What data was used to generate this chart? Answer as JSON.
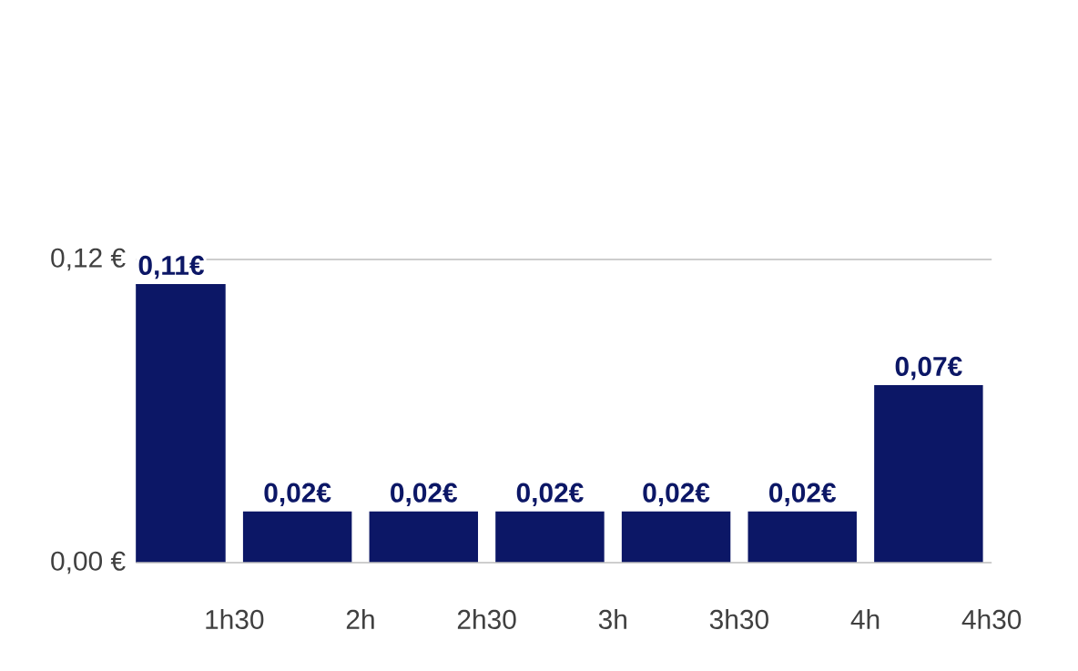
{
  "chart_data": {
    "type": "bar",
    "categories": [
      "1h30",
      "2h",
      "2h30",
      "3h",
      "3h30",
      "4h",
      "4h30"
    ],
    "values": [
      0.11,
      0.02,
      0.02,
      0.02,
      0.02,
      0.02,
      0.07
    ],
    "value_labels": [
      "0,11€",
      "0,02€",
      "0,02€",
      "0,02€",
      "0,02€",
      "0,02€",
      "0,07€"
    ],
    "color": "#0c1766",
    "ylim": [
      0,
      0.12
    ],
    "yticks": [
      {
        "value": 0,
        "label": "0,00 €"
      },
      {
        "value": 0.12,
        "label": "0,12 €"
      }
    ],
    "grid": "y"
  }
}
